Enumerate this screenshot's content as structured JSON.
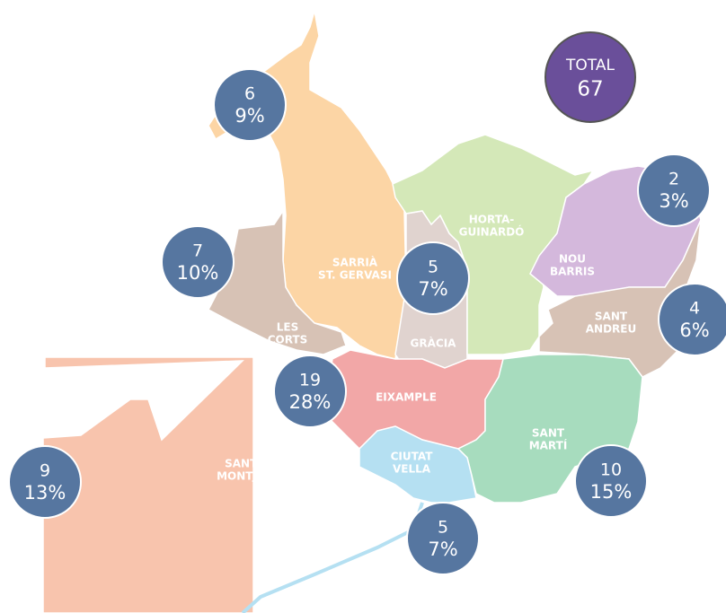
{
  "total": {
    "label": "TOTAL",
    "value": 67
  },
  "districts": [
    {
      "name_lines": [
        "SARRIÀ",
        "ST. GERVASI"
      ],
      "count": 6,
      "share": "9%"
    },
    {
      "name_lines": [
        "LES",
        "CORTS"
      ],
      "count": 7,
      "share": "10%"
    },
    {
      "name_lines": [
        "GRÀCIA"
      ],
      "count": 5,
      "share": "7%"
    },
    {
      "name_lines": [
        "HORTA-",
        "GUINARDÓ"
      ]
    },
    {
      "name_lines": [
        "NOU",
        "BARRIS"
      ],
      "count": 2,
      "share": "3%"
    },
    {
      "name_lines": [
        "SANT",
        "ANDREU"
      ],
      "count": 4,
      "share": "6%"
    },
    {
      "name_lines": [
        "EIXAMPLE"
      ],
      "count": 19,
      "share": "28%"
    },
    {
      "name_lines": [
        "SANT",
        "MARTÍ"
      ],
      "count": 10,
      "share": "15%"
    },
    {
      "name_lines": [
        "CIUTAT",
        "VELLA"
      ],
      "count": 5,
      "share": "7%"
    },
    {
      "name_lines": [
        "SANTS-",
        "MONTJUÏC"
      ],
      "count": 9,
      "share": "13%"
    }
  ]
}
